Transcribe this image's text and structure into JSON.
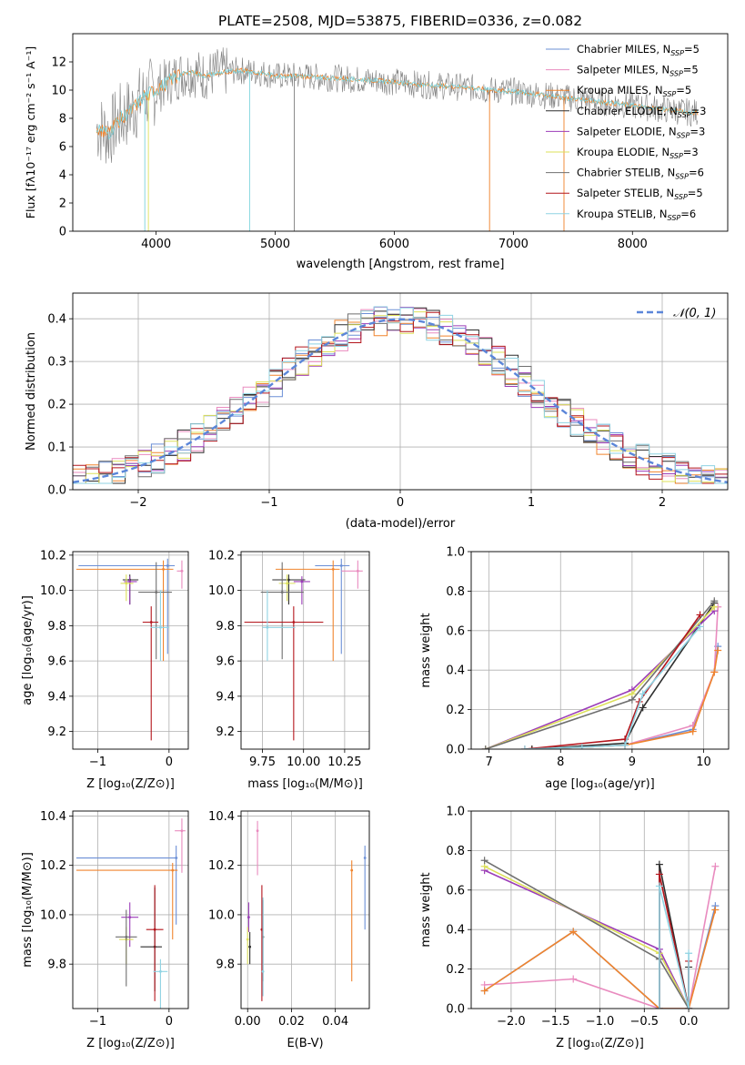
{
  "colors": {
    "series": [
      "#6b8fd6",
      "#e98bbf",
      "#f0842d",
      "#2f2f2f",
      "#9b3db8",
      "#dde05a",
      "#6f6f6f",
      "#b4151c",
      "#8fd3e3"
    ],
    "normal_curve": "#5b86d9",
    "grid": "#b0b0b0",
    "spectrum": "#808080",
    "spectrum_model": "#7dd3dc",
    "spectrum_orange": "#ef7f26"
  },
  "chart_data": [
    {
      "type": "line",
      "panel": "spectrum",
      "title": "PLATE=2508, MJD=53875, FIBERID=0336, z=0.082",
      "xlabel": "wavelength [Angstrom, rest frame]",
      "ylabel": "Flux [fλ10⁻¹⁷ erg cm⁻² s⁻¹ A⁻¹]",
      "xlim": [
        3300,
        8800
      ],
      "ylim": [
        0,
        14
      ],
      "xticks": [
        4000,
        5000,
        6000,
        7000,
        8000
      ],
      "yticks": [
        0,
        2,
        4,
        6,
        8,
        10,
        12
      ],
      "grid": false,
      "legend_position": "top-right",
      "legend": [
        {
          "label": "Chabrier MILES, N",
          "sub": "SSP",
          "tail": "=5"
        },
        {
          "label": "Salpeter MILES, N",
          "sub": "SSP",
          "tail": "=5"
        },
        {
          "label": "Kroupa MILES, N",
          "sub": "SSP",
          "tail": "=5"
        },
        {
          "label": "Chabrier ELODIE, N",
          "sub": "SSP",
          "tail": "=3"
        },
        {
          "label": "Salpeter ELODIE, N",
          "sub": "SSP",
          "tail": "=3"
        },
        {
          "label": "Kroupa ELODIE, N",
          "sub": "SSP",
          "tail": "=3"
        },
        {
          "label": "Chabrier STELIB, N",
          "sub": "SSP",
          "tail": "=6"
        },
        {
          "label": "Salpeter STELIB, N",
          "sub": "SSP",
          "tail": "=5"
        },
        {
          "label": "Kroupa STELIB, N",
          "sub": "SSP",
          "tail": "=6"
        }
      ],
      "x": [
        3520,
        3600,
        3700,
        3800,
        3900,
        4000,
        4100,
        4200,
        4300,
        4400,
        4500,
        4600,
        4700,
        4800,
        4900,
        5000,
        5200,
        5400,
        5600,
        5800,
        6000,
        6200,
        6400,
        6600,
        6800,
        7000,
        7200,
        7400,
        7600,
        7800,
        8000,
        8200,
        8400,
        8500
      ],
      "y": [
        7.3,
        6.9,
        8.0,
        8.6,
        9.6,
        10.0,
        10.6,
        11.1,
        11.3,
        11.0,
        11.2,
        11.3,
        11.4,
        11.3,
        11.2,
        11.0,
        11.0,
        10.9,
        10.8,
        10.7,
        10.6,
        10.4,
        10.3,
        10.2,
        10.0,
        9.9,
        9.7,
        9.5,
        9.3,
        9.1,
        8.9,
        8.7,
        8.5,
        8.4
      ]
    },
    {
      "type": "line",
      "panel": "residual-histogram",
      "xlabel": "(data-model)/error",
      "ylabel": "Normed distribution",
      "xlim": [
        -2.5,
        2.5
      ],
      "ylim": [
        0,
        0.46
      ],
      "xticks": [
        -2,
        -1,
        0,
        1,
        2
      ],
      "yticks": [
        0.0,
        0.1,
        0.2,
        0.3,
        0.4
      ],
      "grid": true,
      "legend_position": "top-right",
      "legend": [
        "𝒩(0, 1)"
      ]
    },
    {
      "type": "scatter",
      "panel": "age-vs-metallicity",
      "xlabel": "Z [log₁₀(Z/Z⊙)]",
      "ylabel": "age  [log₁₀(age/yr)]",
      "xlim": [
        -1.35,
        0.27
      ],
      "ylim": [
        9.1,
        10.22
      ],
      "xticks": [
        -1,
        0
      ],
      "yticks": [
        9.2,
        9.4,
        9.6,
        9.8,
        10.0,
        10.2
      ],
      "grid": true,
      "points": [
        {
          "series": 0,
          "x": -0.02,
          "y": 10.14,
          "xerr": [
            1.25,
            0.1
          ],
          "yerr": [
            0.5,
            0.04
          ]
        },
        {
          "series": 1,
          "x": 0.18,
          "y": 10.11,
          "xerr": [
            0.07,
            0.02
          ],
          "yerr": [
            0.1,
            0.06
          ]
        },
        {
          "series": 2,
          "x": -0.08,
          "y": 10.12,
          "xerr": [
            1.22,
            0.14
          ],
          "yerr": [
            0.52,
            0.05
          ]
        },
        {
          "series": 3,
          "x": -0.55,
          "y": 10.06,
          "xerr": [
            0.1,
            0.12
          ],
          "yerr": [
            0.14,
            0.03
          ]
        },
        {
          "series": 4,
          "x": -0.55,
          "y": 10.05,
          "xerr": [
            0.08,
            0.1
          ],
          "yerr": [
            0.13,
            0.03
          ]
        },
        {
          "series": 5,
          "x": -0.6,
          "y": 10.04,
          "xerr": [
            0.08,
            0.1
          ],
          "yerr": [
            0.1,
            0.05
          ]
        },
        {
          "series": 6,
          "x": -0.18,
          "y": 9.99,
          "xerr": [
            0.25,
            0.22
          ],
          "yerr": [
            0.38,
            0.17
          ]
        },
        {
          "series": 7,
          "x": -0.25,
          "y": 9.82,
          "xerr": [
            0.12,
            0.1
          ],
          "yerr": [
            0.67,
            0.09
          ]
        },
        {
          "series": 8,
          "x": -0.12,
          "y": 9.79,
          "xerr": [
            0.14,
            0.12
          ],
          "yerr": [
            0.19,
            0.21
          ]
        }
      ]
    },
    {
      "type": "scatter",
      "panel": "age-vs-mass",
      "xlabel": "mass [log₁₀(M/M⊙)]",
      "ylabel": "",
      "xlim": [
        9.62,
        10.4
      ],
      "ylim": [
        9.1,
        10.22
      ],
      "xticks": [
        9.75,
        10.0,
        10.25
      ],
      "xticklabels": [
        "9.75",
        "10.00",
        "10.25"
      ],
      "yticks": [
        9.2,
        9.4,
        9.6,
        9.8,
        10.0,
        10.2
      ],
      "grid": true,
      "points": [
        {
          "series": 0,
          "x": 10.23,
          "y": 10.14,
          "xerr": [
            0.16,
            0.05
          ],
          "yerr": [
            0.5,
            0.04
          ]
        },
        {
          "series": 1,
          "x": 10.33,
          "y": 10.11,
          "xerr": [
            0.1,
            0.03
          ],
          "yerr": [
            0.1,
            0.06
          ]
        },
        {
          "series": 2,
          "x": 10.18,
          "y": 10.12,
          "xerr": [
            0.35,
            0.04
          ],
          "yerr": [
            0.52,
            0.05
          ]
        },
        {
          "series": 3,
          "x": 9.91,
          "y": 10.06,
          "xerr": [
            0.1,
            0.1
          ],
          "yerr": [
            0.14,
            0.03
          ]
        },
        {
          "series": 4,
          "x": 9.99,
          "y": 10.05,
          "xerr": [
            0.05,
            0.05
          ],
          "yerr": [
            0.13,
            0.03
          ]
        },
        {
          "series": 5,
          "x": 9.9,
          "y": 10.04,
          "xerr": [
            0.05,
            0.05
          ],
          "yerr": [
            0.1,
            0.05
          ]
        },
        {
          "series": 6,
          "x": 9.87,
          "y": 9.99,
          "xerr": [
            0.13,
            0.13
          ],
          "yerr": [
            0.38,
            0.17
          ]
        },
        {
          "series": 7,
          "x": 9.94,
          "y": 9.82,
          "xerr": [
            0.3,
            0.18
          ],
          "yerr": [
            0.67,
            0.09
          ]
        },
        {
          "series": 8,
          "x": 9.78,
          "y": 9.79,
          "xerr": [
            0.03,
            0.17
          ],
          "yerr": [
            0.19,
            0.21
          ]
        }
      ]
    },
    {
      "type": "line",
      "panel": "mass-weight-vs-age",
      "xlabel": "age  [log₁₀(age/yr)]",
      "ylabel": "mass weight",
      "xlim": [
        6.75,
        10.35
      ],
      "ylim": [
        0,
        1.0
      ],
      "xticks": [
        7,
        8,
        9,
        10
      ],
      "yticks": [
        0.0,
        0.2,
        0.4,
        0.6,
        0.8,
        1.0
      ],
      "grid": true,
      "series": [
        {
          "series": 0,
          "x": [
            7.6,
            8.3,
            8.9,
            9.85,
            10.15,
            10.2
          ],
          "y": [
            0.0,
            0.01,
            0.02,
            0.1,
            0.39,
            0.52
          ]
        },
        {
          "series": 1,
          "x": [
            7.6,
            8.3,
            8.9,
            9.85,
            10.15,
            10.2
          ],
          "y": [
            0.0,
            0.01,
            0.02,
            0.12,
            0.39,
            0.72
          ]
        },
        {
          "series": 2,
          "x": [
            7.6,
            8.3,
            8.9,
            9.85,
            10.15,
            10.2
          ],
          "y": [
            0.0,
            0.01,
            0.02,
            0.09,
            0.39,
            0.5
          ]
        },
        {
          "series": 3,
          "x": [
            7.6,
            8.9,
            9.15,
            10.15
          ],
          "y": [
            0.0,
            0.03,
            0.21,
            0.74
          ]
        },
        {
          "series": 4,
          "x": [
            6.95,
            9.0,
            10.15
          ],
          "y": [
            0.0,
            0.3,
            0.7
          ]
        },
        {
          "series": 5,
          "x": [
            6.95,
            9.0,
            10.15
          ],
          "y": [
            0.0,
            0.28,
            0.72
          ]
        },
        {
          "series": 6,
          "x": [
            6.95,
            9.0,
            10.15
          ],
          "y": [
            0.0,
            0.25,
            0.75
          ]
        },
        {
          "series": 7,
          "x": [
            7.5,
            8.9,
            9.1,
            9.95
          ],
          "y": [
            0.0,
            0.05,
            0.24,
            0.68
          ]
        },
        {
          "series": 8,
          "x": [
            7.5,
            8.3,
            8.9,
            9.15,
            9.95
          ],
          "y": [
            0.0,
            0.01,
            0.02,
            0.28,
            0.62
          ]
        }
      ]
    },
    {
      "type": "scatter",
      "panel": "mass-vs-metallicity",
      "xlabel": "Z [log₁₀(Z/Z⊙)]",
      "ylabel": "mass [log₁₀(M/M⊙)]",
      "xlim": [
        -1.35,
        0.27
      ],
      "ylim": [
        9.62,
        10.42
      ],
      "xticks": [
        -1,
        0
      ],
      "yticks": [
        9.8,
        10.0,
        10.2,
        10.4
      ],
      "grid": true,
      "points": [
        {
          "series": 0,
          "x": 0.1,
          "y": 10.23,
          "xerr": [
            1.4,
            0.02
          ],
          "yerr": [
            0.27,
            0.05
          ]
        },
        {
          "series": 1,
          "x": 0.18,
          "y": 10.34,
          "xerr": [
            0.1,
            0.05
          ],
          "yerr": [
            0.17,
            0.05
          ]
        },
        {
          "series": 2,
          "x": 0.05,
          "y": 10.18,
          "xerr": [
            1.35,
            0.07
          ],
          "yerr": [
            0.28,
            0.03
          ]
        },
        {
          "series": 3,
          "x": -0.2,
          "y": 9.87,
          "xerr": [
            0.2,
            0.1
          ],
          "yerr": [
            0.18,
            0.24
          ]
        },
        {
          "series": 4,
          "x": -0.55,
          "y": 9.99,
          "xerr": [
            0.12,
            0.12
          ],
          "yerr": [
            0.12,
            0.06
          ]
        },
        {
          "series": 5,
          "x": -0.6,
          "y": 9.9,
          "xerr": [
            0.1,
            0.1
          ],
          "yerr": [
            0.1,
            0.05
          ]
        },
        {
          "series": 6,
          "x": -0.6,
          "y": 9.91,
          "xerr": [
            0.15,
            0.15
          ],
          "yerr": [
            0.2,
            0.11
          ]
        },
        {
          "series": 7,
          "x": -0.2,
          "y": 9.94,
          "xerr": [
            0.12,
            0.12
          ],
          "yerr": [
            0.29,
            0.18
          ]
        },
        {
          "series": 8,
          "x": -0.12,
          "y": 9.77,
          "xerr": [
            0.1,
            0.1
          ],
          "yerr": [
            0.15,
            0.05
          ]
        }
      ]
    },
    {
      "type": "scatter",
      "panel": "mass-vs-reddening",
      "xlabel": "E(B-V)",
      "ylabel": "",
      "xlim": [
        -0.003,
        0.0555
      ],
      "ylim": [
        9.62,
        10.42
      ],
      "xticks": [
        0.0,
        0.02,
        0.04
      ],
      "xticklabels": [
        "0.00",
        "0.02",
        "0.04"
      ],
      "yticks": [
        9.8,
        10.0,
        10.2,
        10.4
      ],
      "grid": true,
      "points": [
        {
          "series": 0,
          "x": 0.0535,
          "y": 10.23,
          "yerr": [
            0.29,
            0.05
          ]
        },
        {
          "series": 1,
          "x": 0.0045,
          "y": 10.34,
          "yerr": [
            0.18,
            0.04
          ]
        },
        {
          "series": 2,
          "x": 0.0475,
          "y": 10.18,
          "yerr": [
            0.45,
            0.04
          ]
        },
        {
          "series": 3,
          "x": 0.001,
          "y": 9.87,
          "yerr": [
            0.07,
            0.06
          ]
        },
        {
          "series": 4,
          "x": 0.0005,
          "y": 9.99,
          "yerr": [
            0.06,
            0.06
          ]
        },
        {
          "series": 5,
          "x": 0.0,
          "y": 9.9,
          "yerr": [
            0.1,
            0.05
          ]
        },
        {
          "series": 6,
          "x": 0.007,
          "y": 9.91,
          "yerr": [
            0.18,
            0.15
          ]
        },
        {
          "series": 7,
          "x": 0.0065,
          "y": 9.94,
          "yerr": [
            0.29,
            0.18
          ]
        },
        {
          "series": 8,
          "x": 0.007,
          "y": 9.77,
          "yerr": [
            0.1,
            0.3
          ]
        }
      ]
    },
    {
      "type": "line",
      "panel": "mass-weight-vs-metallicity",
      "xlabel": "Z [log₁₀(Z/Z⊙)]",
      "ylabel": "mass weight",
      "xlim": [
        -2.45,
        0.45
      ],
      "ylim": [
        0,
        1.0
      ],
      "xticks": [
        -2.0,
        -1.5,
        -1.0,
        -0.5,
        0.0
      ],
      "xticklabels": [
        "−2.0",
        "−1.5",
        "−1.0",
        "−0.5",
        "0.0"
      ],
      "yticks": [
        0.0,
        0.2,
        0.4,
        0.6,
        0.8,
        1.0
      ],
      "grid": true,
      "series": [
        {
          "series": 0,
          "x": [
            -2.3,
            -1.3,
            -0.33,
            0.0,
            0.3
          ],
          "y": [
            0.09,
            0.39,
            0.0,
            0.0,
            0.52
          ]
        },
        {
          "series": 1,
          "x": [
            -2.3,
            -1.3,
            -0.33,
            0.0,
            0.3
          ],
          "y": [
            0.12,
            0.15,
            0.0,
            0.0,
            0.72
          ]
        },
        {
          "series": 2,
          "x": [
            -2.3,
            -1.3,
            -0.33,
            0.0,
            0.3
          ],
          "y": [
            0.09,
            0.39,
            0.0,
            0.0,
            0.5
          ]
        },
        {
          "series": 3,
          "x": [
            -0.33,
            -0.33,
            0.0,
            0.0
          ],
          "y": [
            0.0,
            0.73,
            0.0,
            0.21
          ]
        },
        {
          "series": 4,
          "x": [
            -2.3,
            -0.33,
            0.0
          ],
          "y": [
            0.7,
            0.3,
            0.0
          ]
        },
        {
          "series": 5,
          "x": [
            -2.3,
            -0.33,
            0.0
          ],
          "y": [
            0.72,
            0.28,
            0.0
          ]
        },
        {
          "series": 6,
          "x": [
            -2.3,
            -0.33,
            0.0
          ],
          "y": [
            0.75,
            0.25,
            0.0
          ]
        },
        {
          "series": 7,
          "x": [
            -0.33,
            -0.33,
            0.0,
            0.0
          ],
          "y": [
            0.0,
            0.68,
            0.0,
            0.24
          ]
        },
        {
          "series": 8,
          "x": [
            -0.33,
            -0.33,
            0.0,
            0.0
          ],
          "y": [
            0.0,
            0.62,
            0.0,
            0.28
          ]
        }
      ]
    }
  ]
}
